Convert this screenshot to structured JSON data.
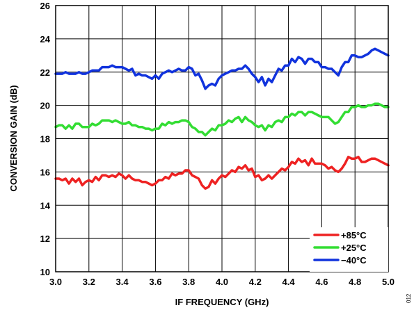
{
  "chart_data": {
    "type": "line",
    "xlabel": "IF FREQUENCY (GHz)",
    "ylabel": "CONVERSION GAIN (dB)",
    "xlim": [
      3.0,
      5.0
    ],
    "ylim": [
      10,
      26
    ],
    "x_ticks": [
      "3.0",
      "3.2",
      "3.4",
      "3.6",
      "3.8",
      "4.0",
      "4.2",
      "4.4",
      "4.6",
      "4.8",
      "5.0"
    ],
    "y_ticks": [
      "10",
      "12",
      "14",
      "16",
      "18",
      "20",
      "22",
      "24",
      "26"
    ],
    "grid": true,
    "legend_position": "bottom-right",
    "series": [
      {
        "name": "+85°C",
        "color": "#ee2222",
        "x": [
          3.0,
          3.02,
          3.04,
          3.06,
          3.08,
          3.1,
          3.12,
          3.14,
          3.16,
          3.18,
          3.2,
          3.22,
          3.24,
          3.26,
          3.28,
          3.3,
          3.32,
          3.34,
          3.36,
          3.38,
          3.4,
          3.42,
          3.44,
          3.46,
          3.48,
          3.5,
          3.52,
          3.54,
          3.56,
          3.58,
          3.6,
          3.62,
          3.64,
          3.66,
          3.68,
          3.7,
          3.72,
          3.74,
          3.76,
          3.78,
          3.8,
          3.82,
          3.84,
          3.86,
          3.88,
          3.9,
          3.92,
          3.94,
          3.96,
          3.98,
          4.0,
          4.02,
          4.04,
          4.06,
          4.08,
          4.1,
          4.12,
          4.14,
          4.16,
          4.18,
          4.2,
          4.22,
          4.24,
          4.26,
          4.28,
          4.3,
          4.32,
          4.34,
          4.36,
          4.38,
          4.4,
          4.42,
          4.44,
          4.46,
          4.48,
          4.5,
          4.52,
          4.54,
          4.56,
          4.58,
          4.6,
          4.62,
          4.64,
          4.66,
          4.68,
          4.7,
          4.72,
          4.74,
          4.76,
          4.78,
          4.8,
          4.82,
          4.84,
          4.86,
          4.88,
          4.9,
          4.92,
          4.94,
          4.96,
          4.98,
          5.0
        ],
        "values": [
          15.6,
          15.6,
          15.5,
          15.6,
          15.3,
          15.6,
          15.4,
          15.6,
          15.2,
          15.4,
          15.5,
          15.4,
          15.7,
          15.5,
          15.8,
          15.8,
          15.7,
          15.8,
          15.7,
          15.9,
          15.8,
          15.6,
          15.8,
          15.6,
          15.5,
          15.5,
          15.4,
          15.4,
          15.3,
          15.2,
          15.3,
          15.5,
          15.5,
          15.7,
          15.6,
          15.9,
          15.8,
          15.9,
          15.9,
          16.1,
          16.1,
          15.8,
          15.7,
          15.6,
          15.2,
          15.0,
          15.1,
          15.5,
          15.3,
          15.6,
          15.8,
          15.7,
          15.9,
          16.1,
          16.0,
          16.3,
          16.2,
          16.4,
          16.1,
          16.2,
          15.7,
          15.8,
          15.5,
          15.6,
          15.8,
          15.6,
          15.8,
          16.0,
          16.2,
          16.1,
          16.3,
          16.6,
          16.5,
          16.8,
          16.6,
          16.7,
          16.4,
          16.8,
          16.5,
          16.5,
          16.5,
          16.4,
          16.2,
          16.3,
          16.1,
          16.0,
          16.2,
          16.5,
          16.9,
          16.8,
          16.8,
          16.9,
          16.6,
          16.6,
          16.7,
          16.8,
          16.8,
          16.7,
          16.6,
          16.5,
          16.4
        ]
      },
      {
        "name": "+25°C",
        "color": "#33dd33",
        "x": [
          3.0,
          3.02,
          3.04,
          3.06,
          3.08,
          3.1,
          3.12,
          3.14,
          3.16,
          3.18,
          3.2,
          3.22,
          3.24,
          3.26,
          3.28,
          3.3,
          3.32,
          3.34,
          3.36,
          3.38,
          3.4,
          3.42,
          3.44,
          3.46,
          3.48,
          3.5,
          3.52,
          3.54,
          3.56,
          3.58,
          3.6,
          3.62,
          3.64,
          3.66,
          3.68,
          3.7,
          3.72,
          3.74,
          3.76,
          3.78,
          3.8,
          3.82,
          3.84,
          3.86,
          3.88,
          3.9,
          3.92,
          3.94,
          3.96,
          3.98,
          4.0,
          4.02,
          4.04,
          4.06,
          4.08,
          4.1,
          4.12,
          4.14,
          4.16,
          4.18,
          4.2,
          4.22,
          4.24,
          4.26,
          4.28,
          4.3,
          4.32,
          4.34,
          4.36,
          4.38,
          4.4,
          4.42,
          4.44,
          4.46,
          4.48,
          4.5,
          4.52,
          4.54,
          4.56,
          4.58,
          4.6,
          4.62,
          4.64,
          4.66,
          4.68,
          4.7,
          4.72,
          4.74,
          4.76,
          4.78,
          4.8,
          4.82,
          4.84,
          4.86,
          4.88,
          4.9,
          4.92,
          4.94,
          4.96,
          4.98,
          5.0
        ],
        "values": [
          18.7,
          18.8,
          18.8,
          18.6,
          18.8,
          18.6,
          18.9,
          18.9,
          18.7,
          18.7,
          18.7,
          18.9,
          18.8,
          18.9,
          19.1,
          19.1,
          19.1,
          19.0,
          19.1,
          19.0,
          18.9,
          18.9,
          19.0,
          18.8,
          18.8,
          18.7,
          18.7,
          18.6,
          18.6,
          18.5,
          18.6,
          18.6,
          18.9,
          18.8,
          19.0,
          18.9,
          19.0,
          19.0,
          19.1,
          19.1,
          19.0,
          18.7,
          18.6,
          18.4,
          18.4,
          18.2,
          18.4,
          18.6,
          18.5,
          18.8,
          18.8,
          18.9,
          19.1,
          19.0,
          19.2,
          19.3,
          19.0,
          19.3,
          19.1,
          19.0,
          18.8,
          18.7,
          18.8,
          18.5,
          18.8,
          18.7,
          19.0,
          19.1,
          19.0,
          19.3,
          19.3,
          19.5,
          19.4,
          19.6,
          19.6,
          19.4,
          19.6,
          19.6,
          19.5,
          19.4,
          19.3,
          19.3,
          19.3,
          19.1,
          18.9,
          19.0,
          19.3,
          19.6,
          19.6,
          19.9,
          19.9,
          20.0,
          19.9,
          19.9,
          20.0,
          20.0,
          20.1,
          20.1,
          20.0,
          19.9,
          19.9
        ]
      },
      {
        "name": "−40°C",
        "color": "#1133dd",
        "x": [
          3.0,
          3.02,
          3.04,
          3.06,
          3.08,
          3.1,
          3.12,
          3.14,
          3.16,
          3.18,
          3.2,
          3.22,
          3.24,
          3.26,
          3.28,
          3.3,
          3.32,
          3.34,
          3.36,
          3.38,
          3.4,
          3.42,
          3.44,
          3.46,
          3.48,
          3.5,
          3.52,
          3.54,
          3.56,
          3.58,
          3.6,
          3.62,
          3.64,
          3.66,
          3.68,
          3.7,
          3.72,
          3.74,
          3.76,
          3.78,
          3.8,
          3.82,
          3.84,
          3.86,
          3.88,
          3.9,
          3.92,
          3.94,
          3.96,
          3.98,
          4.0,
          4.02,
          4.04,
          4.06,
          4.08,
          4.1,
          4.12,
          4.14,
          4.16,
          4.18,
          4.2,
          4.22,
          4.24,
          4.26,
          4.28,
          4.3,
          4.32,
          4.34,
          4.36,
          4.38,
          4.4,
          4.42,
          4.44,
          4.46,
          4.48,
          4.5,
          4.52,
          4.54,
          4.56,
          4.58,
          4.6,
          4.62,
          4.64,
          4.66,
          4.68,
          4.7,
          4.72,
          4.74,
          4.76,
          4.78,
          4.8,
          4.82,
          4.84,
          4.86,
          4.88,
          4.9,
          4.92,
          4.94,
          4.96,
          4.98,
          5.0
        ],
        "values": [
          21.9,
          21.9,
          21.9,
          22.0,
          21.9,
          21.9,
          21.9,
          22.0,
          21.9,
          21.9,
          22.0,
          22.1,
          22.1,
          22.1,
          22.3,
          22.3,
          22.3,
          22.4,
          22.3,
          22.3,
          22.3,
          22.2,
          22.1,
          22.2,
          21.8,
          21.9,
          21.8,
          21.8,
          21.7,
          21.6,
          21.8,
          21.6,
          21.9,
          22.0,
          22.1,
          22.0,
          22.1,
          22.2,
          22.1,
          22.1,
          22.3,
          22.2,
          21.8,
          21.9,
          21.5,
          21.0,
          21.2,
          21.3,
          21.2,
          21.6,
          21.8,
          21.9,
          22.0,
          22.1,
          22.1,
          22.2,
          22.2,
          22.4,
          22.2,
          21.9,
          21.7,
          21.4,
          21.7,
          21.2,
          21.6,
          21.4,
          21.8,
          22.2,
          22.1,
          22.4,
          22.4,
          22.8,
          22.6,
          22.9,
          22.8,
          22.5,
          22.8,
          22.8,
          22.6,
          22.6,
          22.3,
          22.3,
          22.2,
          22.2,
          22.0,
          21.8,
          22.3,
          22.6,
          22.6,
          23.0,
          23.0,
          22.9,
          22.9,
          23.0,
          23.1,
          23.3,
          23.4,
          23.3,
          23.2,
          23.1,
          23.0
        ]
      }
    ]
  },
  "side_code": "012"
}
